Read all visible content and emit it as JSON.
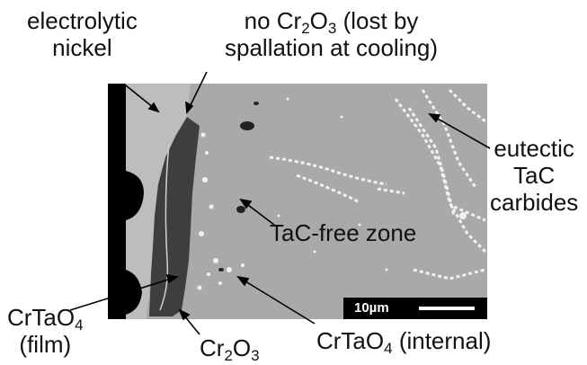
{
  "labels": {
    "electrolytic_nickel": [
      "electrolytic",
      "nickel"
    ],
    "no_cr2o3": {
      "line1_prefix": "no Cr",
      "line1_sub1": "2",
      "line1_mid": "O",
      "line1_sub2": "3",
      "line1_suffix": " (lost by",
      "line2": "spallation at cooling)"
    },
    "eutectic": [
      "eutectic",
      "TaC",
      "carbides"
    ],
    "tac_free_zone": "TaC-free zone",
    "crtao4_film": {
      "prefix": "CrTaO",
      "sub": "4",
      "line2": "(film)"
    },
    "cr2o3": {
      "prefix": "Cr",
      "sub1": "2",
      "mid": "O",
      "sub2": "3"
    },
    "crtao4_internal": {
      "prefix": "CrTaO",
      "sub": "4",
      "suffix": " (internal)"
    }
  },
  "scale_bar": {
    "label": "10µm"
  },
  "colors": {
    "matrix": "#a9a9a9",
    "nickel": "#bdbdbd",
    "oxide_dark": "#3e3e3e",
    "background": "#000000",
    "carbide": "#f2f2f2"
  }
}
